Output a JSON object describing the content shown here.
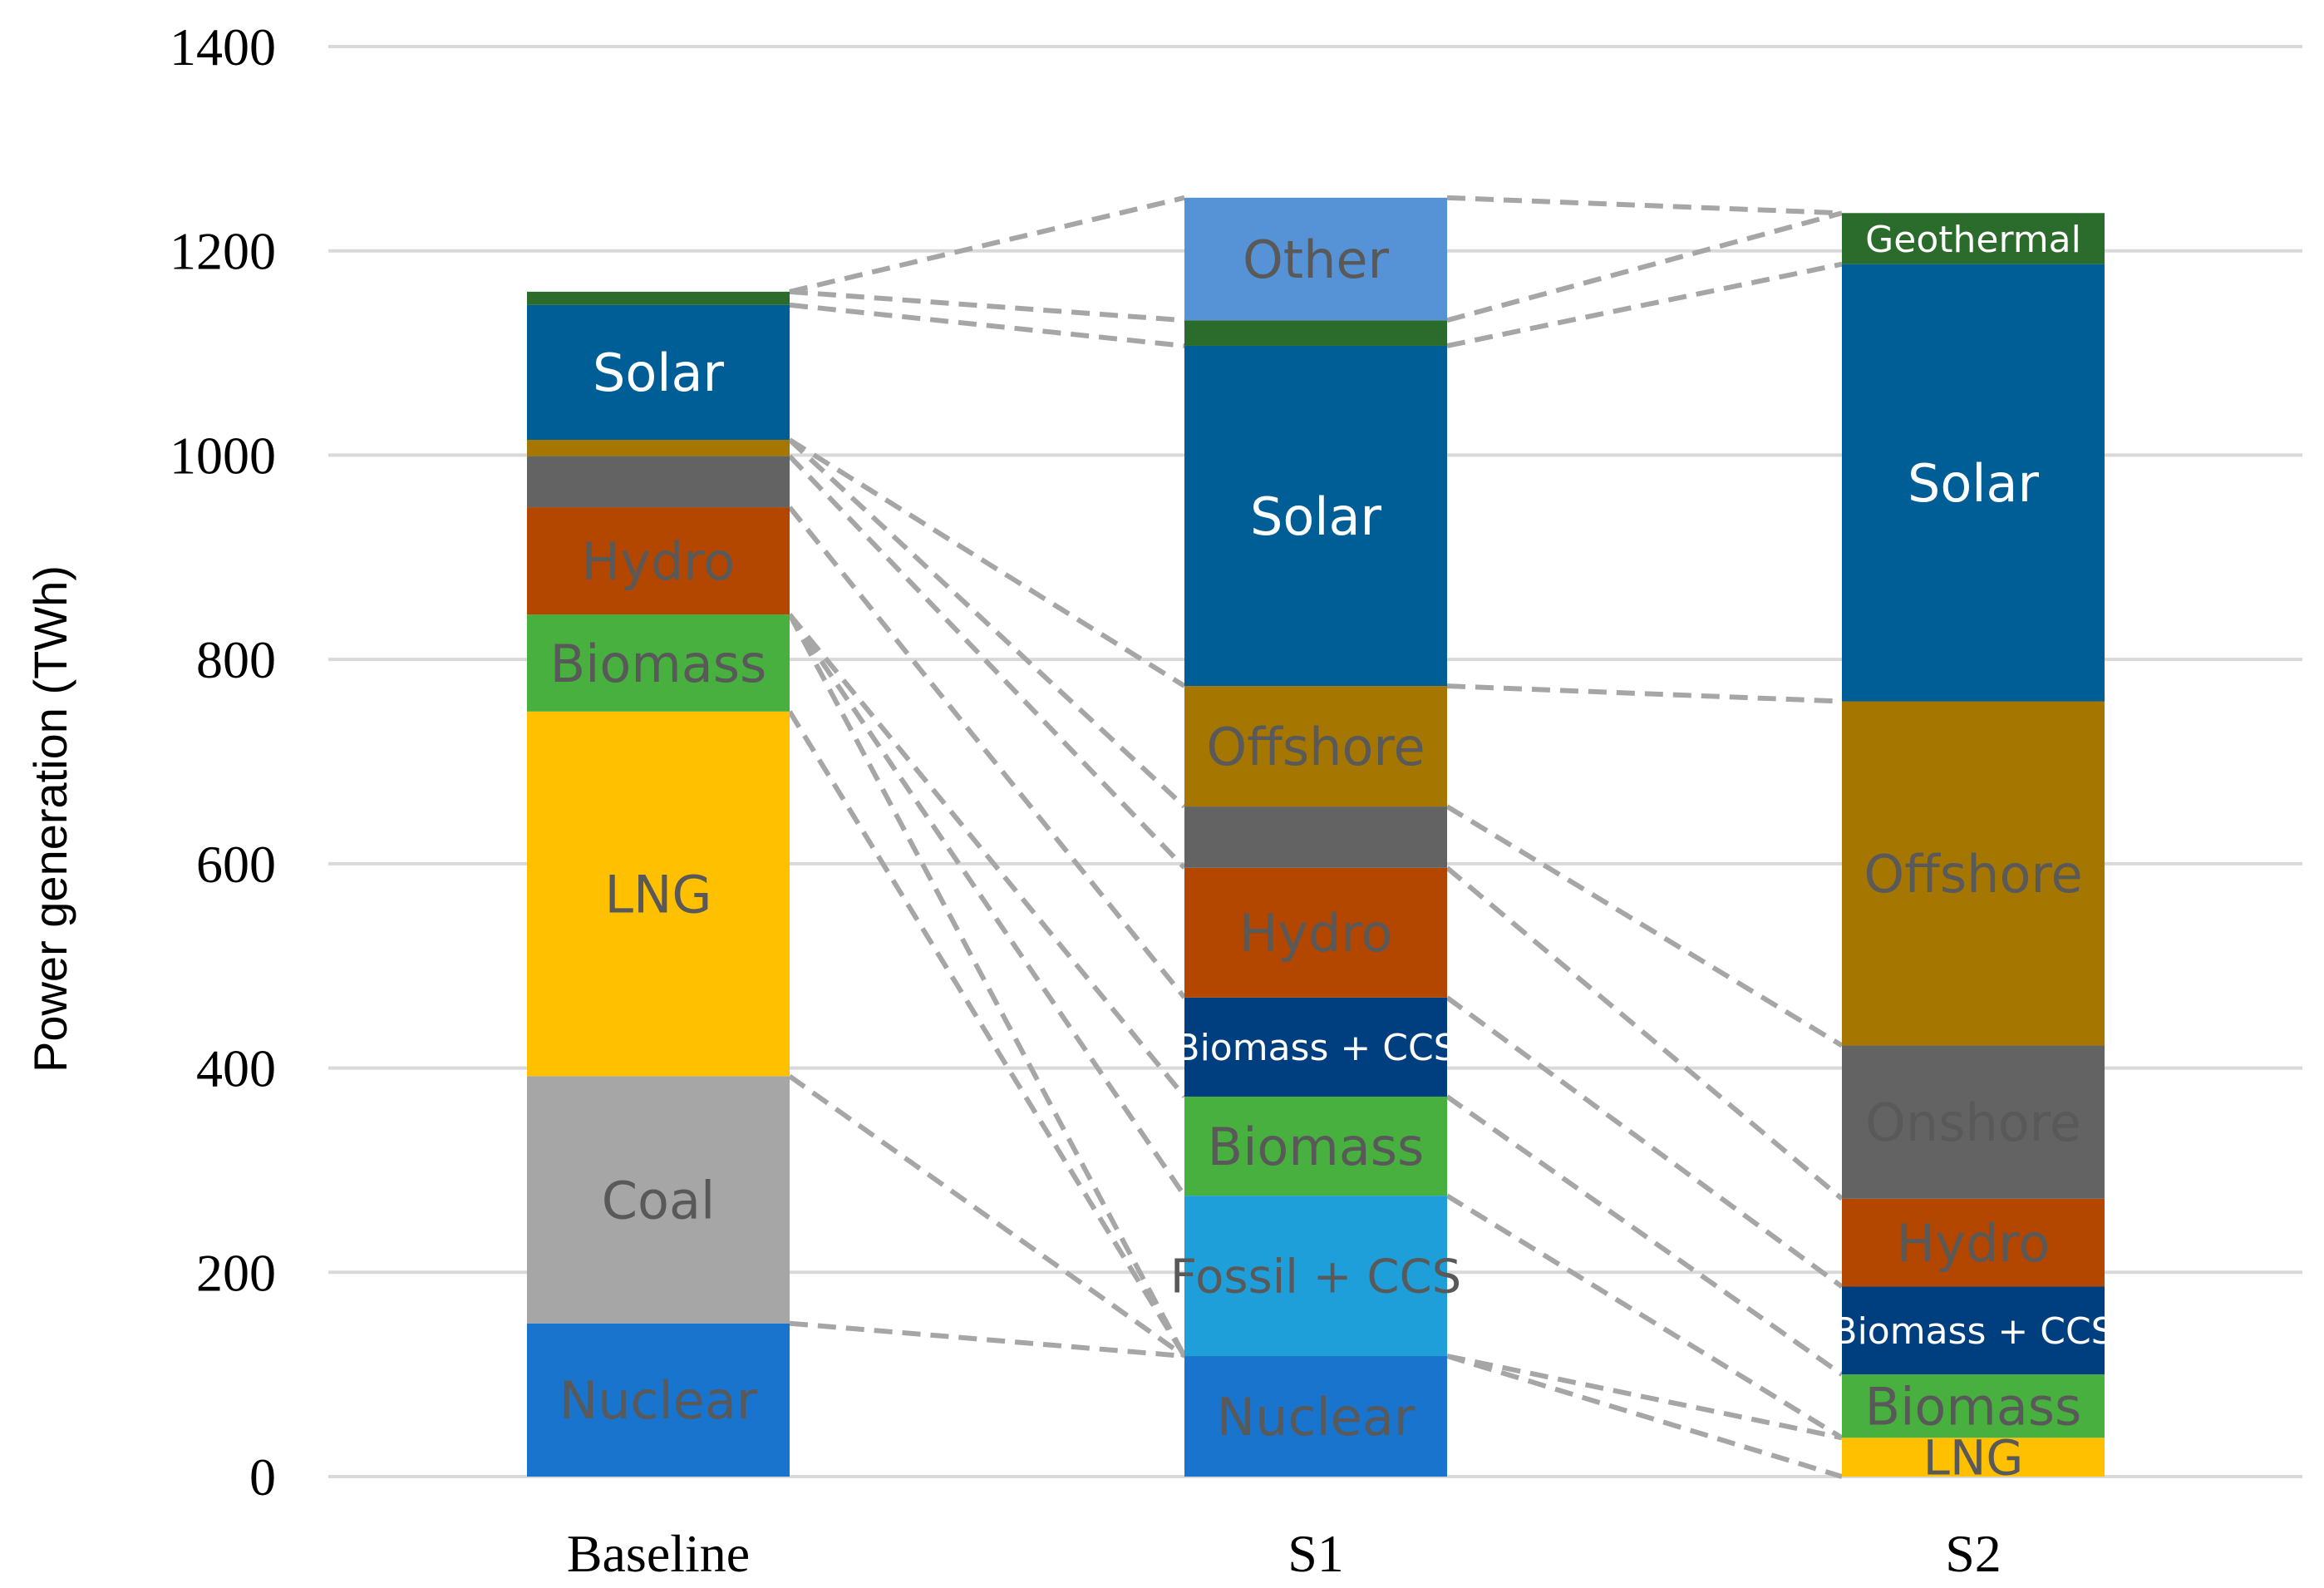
{
  "chart_data": {
    "type": "bar",
    "stacked": true,
    "title": "",
    "xlabel": "",
    "ylabel": "Power generation (TWh)",
    "ylim": [
      0,
      1400
    ],
    "yticks": [
      0,
      200,
      400,
      600,
      800,
      1000,
      1200,
      1400
    ],
    "grid": true,
    "categories": [
      "Baseline",
      "S1",
      "S2"
    ],
    "bars": [
      {
        "category": "Baseline",
        "segments": [
          {
            "name": "Nuclear",
            "value": 150,
            "color": "#1874CD",
            "label": "Nuclear",
            "label_color": "#595959"
          },
          {
            "name": "Coal",
            "value": 242,
            "color": "#A6A6A6",
            "label": "Coal",
            "label_color": "#595959"
          },
          {
            "name": "LNG",
            "value": 357,
            "color": "#FFC000",
            "label": "LNG",
            "label_color": "#595959"
          },
          {
            "name": "Biomass",
            "value": 95,
            "color": "#47B03E",
            "label": "Biomass",
            "label_color": "#595959"
          },
          {
            "name": "Hydro",
            "value": 105,
            "color": "#B34700",
            "label": "Hydro",
            "label_color": "#595959"
          },
          {
            "name": "Onshore",
            "value": 50,
            "color": "#636363",
            "label": "",
            "label_color": "#595959"
          },
          {
            "name": "Offshore",
            "value": 16,
            "color": "#A67700",
            "label": "",
            "label_color": "#595959"
          },
          {
            "name": "Solar",
            "value": 132,
            "color": "#005E96",
            "label": "Solar",
            "label_color": "#FFFFFF"
          },
          {
            "name": "Geothermal",
            "value": 13,
            "color": "#2B6B2B",
            "label": "",
            "label_color": "#FFFFFF"
          }
        ]
      },
      {
        "category": "S1",
        "segments": [
          {
            "name": "Nuclear",
            "value": 118,
            "color": "#1874CD",
            "label": "Nuclear",
            "label_color": "#595959"
          },
          {
            "name": "Fossil + CCS",
            "value": 157,
            "color": "#1E9FD9",
            "label": "Fossil + CCS",
            "label_color": "#595959"
          },
          {
            "name": "Biomass",
            "value": 97,
            "color": "#47B03E",
            "label": "Biomass",
            "label_color": "#595959"
          },
          {
            "name": "Biomass + CCS",
            "value": 97,
            "color": "#003F7F",
            "label": "Biomass + CCS",
            "label_color": "#FFFFFF"
          },
          {
            "name": "Hydro",
            "value": 127,
            "color": "#B34700",
            "label": "Hydro",
            "label_color": "#595959"
          },
          {
            "name": "Onshore",
            "value": 60,
            "color": "#636363",
            "label": "",
            "label_color": "#595959"
          },
          {
            "name": "Offshore",
            "value": 118,
            "color": "#A67700",
            "label": "Offshore",
            "label_color": "#595959"
          },
          {
            "name": "Solar",
            "value": 333,
            "color": "#005E96",
            "label": "Solar",
            "label_color": "#FFFFFF"
          },
          {
            "name": "Geothermal",
            "value": 25,
            "color": "#2B6B2B",
            "label": "",
            "label_color": "#FFFFFF"
          },
          {
            "name": "Other",
            "value": 120,
            "color": "#5592D6",
            "label": "Other",
            "label_color": "#595959"
          }
        ]
      },
      {
        "category": "S2",
        "segments": [
          {
            "name": "LNG",
            "value": 38,
            "color": "#FFC000",
            "label": "LNG",
            "label_color": "#595959"
          },
          {
            "name": "Biomass",
            "value": 62,
            "color": "#47B03E",
            "label": "Biomass",
            "label_color": "#595959"
          },
          {
            "name": "Biomass + CCS",
            "value": 86,
            "color": "#003F7F",
            "label": "Biomass + CCS",
            "label_color": "#FFFFFF"
          },
          {
            "name": "Hydro",
            "value": 86,
            "color": "#B34700",
            "label": "Hydro",
            "label_color": "#595959"
          },
          {
            "name": "Onshore",
            "value": 150,
            "color": "#636363",
            "label": "Onshore",
            "label_color": "#595959"
          },
          {
            "name": "Offshore",
            "value": 337,
            "color": "#A67700",
            "label": "Offshore",
            "label_color": "#595959"
          },
          {
            "name": "Solar",
            "value": 428,
            "color": "#005E96",
            "label": "Solar",
            "label_color": "#FFFFFF"
          },
          {
            "name": "Geothermal",
            "value": 50,
            "color": "#2B6B2B",
            "label": "Geothermal",
            "label_color": "#FFFFFF"
          }
        ]
      }
    ],
    "connectors": [
      {
        "from": [
          0,
          150
        ],
        "to": [
          1,
          118
        ]
      },
      {
        "from": [
          0,
          392
        ],
        "to": [
          1,
          118
        ]
      },
      {
        "from": [
          0,
          749
        ],
        "to": [
          1,
          118
        ]
      },
      {
        "from": [
          0,
          844
        ],
        "to": [
          1,
          118
        ]
      },
      {
        "from": [
          0,
          844
        ],
        "to": [
          1,
          275
        ]
      },
      {
        "from": [
          0,
          844
        ],
        "to": [
          1,
          372
        ]
      },
      {
        "from": [
          0,
          949
        ],
        "to": [
          1,
          469
        ]
      },
      {
        "from": [
          0,
          999
        ],
        "to": [
          1,
          596
        ]
      },
      {
        "from": [
          0,
          1015
        ],
        "to": [
          1,
          656
        ]
      },
      {
        "from": [
          0,
          1015
        ],
        "to": [
          1,
          774
        ]
      },
      {
        "from": [
          0,
          1147
        ],
        "to": [
          1,
          1107
        ]
      },
      {
        "from": [
          0,
          1160
        ],
        "to": [
          1,
          1132
        ]
      },
      {
        "from": [
          0,
          1160
        ],
        "to": [
          1,
          1252
        ]
      },
      {
        "from": [
          1,
          118
        ],
        "to": [
          2,
          0
        ]
      },
      {
        "from": [
          1,
          118
        ],
        "to": [
          2,
          38
        ]
      },
      {
        "from": [
          1,
          275
        ],
        "to": [
          2,
          38
        ]
      },
      {
        "from": [
          1,
          372
        ],
        "to": [
          2,
          100
        ]
      },
      {
        "from": [
          1,
          469
        ],
        "to": [
          2,
          186
        ]
      },
      {
        "from": [
          1,
          596
        ],
        "to": [
          2,
          272
        ]
      },
      {
        "from": [
          1,
          656
        ],
        "to": [
          2,
          422
        ]
      },
      {
        "from": [
          1,
          774
        ],
        "to": [
          2,
          759
        ]
      },
      {
        "from": [
          1,
          1107
        ],
        "to": [
          2,
          1187
        ]
      },
      {
        "from": [
          1,
          1132
        ],
        "to": [
          2,
          1237
        ]
      },
      {
        "from": [
          1,
          1252
        ],
        "to": [
          2,
          1237
        ]
      }
    ]
  }
}
